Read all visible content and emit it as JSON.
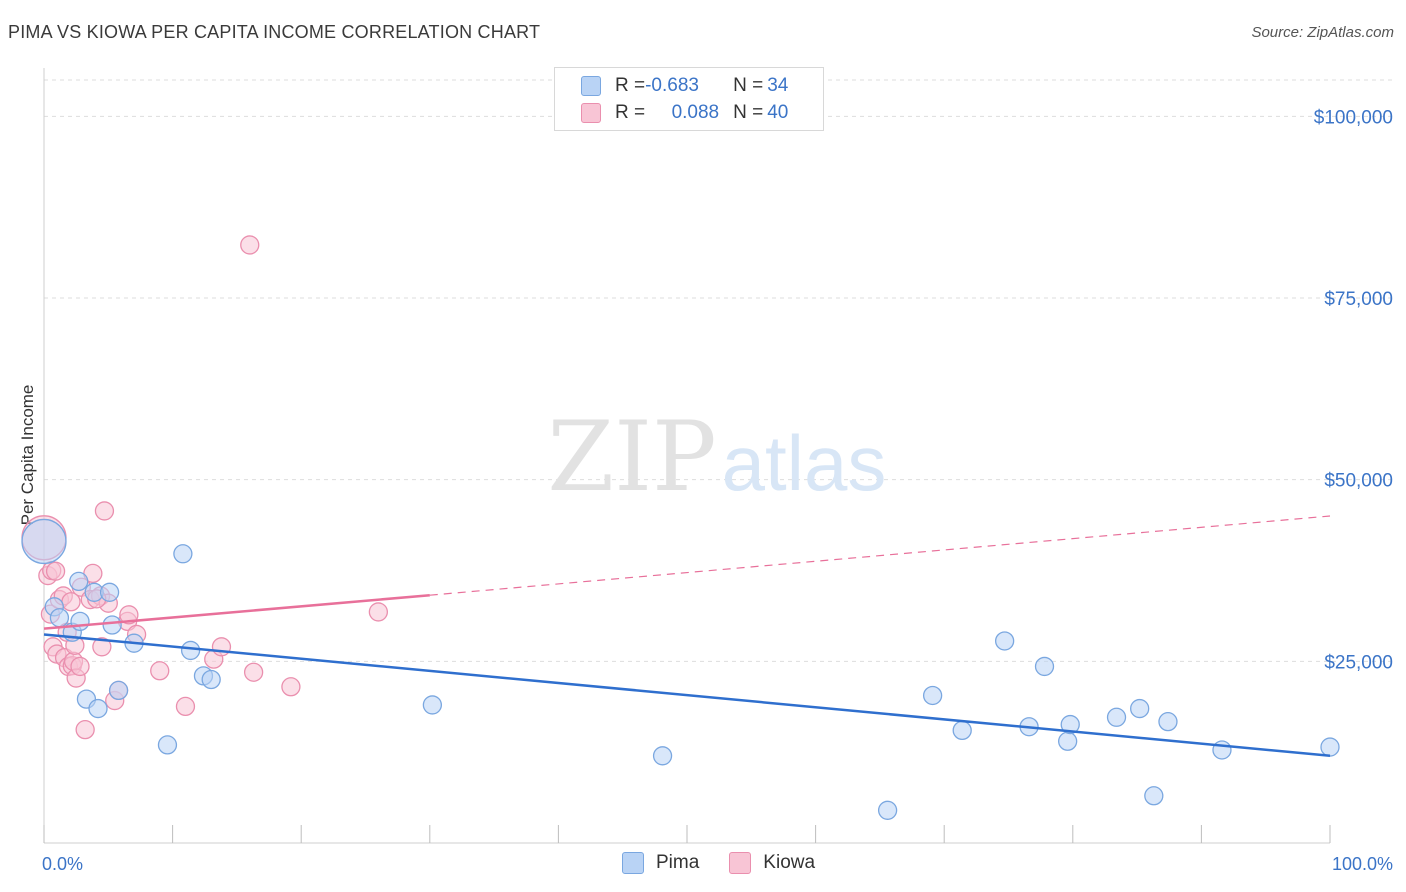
{
  "title": "PIMA VS KIOWA PER CAPITA INCOME CORRELATION CHART",
  "source": "Source: ZipAtlas.com",
  "watermark": {
    "zip": "ZIP",
    "atlas": "atlas"
  },
  "colors": {
    "pima_fill": "#b9d3f5",
    "pima_stroke": "#7aa7e0",
    "pima_line": "#2f6fce",
    "kiowa_fill": "#f8c5d5",
    "kiowa_stroke": "#ea8fae",
    "kiowa_line": "#e8709a",
    "tick_text": "#3b74c7",
    "grid": "#dddddd"
  },
  "stats": {
    "pima": {
      "r_label": "R = ",
      "r_value": "-0.683",
      "n_label": "N = ",
      "n_value": "34"
    },
    "kiowa": {
      "r_label": "R = ",
      "r_value": "0.088",
      "n_label": "N = ",
      "n_value": "40"
    }
  },
  "legend": {
    "pima": "Pima",
    "kiowa": "Kiowa"
  },
  "chart_data": {
    "type": "scatter",
    "title": "PIMA VS KIOWA PER CAPITA INCOME CORRELATION CHART",
    "xlabel": "",
    "ylabel": "Per Capita Income",
    "xlim": [
      0,
      100
    ],
    "ylim": [
      0,
      105000
    ],
    "x_tick_labels": [
      "0.0%",
      "100.0%"
    ],
    "y_ticks": [
      25000,
      50000,
      75000,
      100000
    ],
    "y_tick_labels": [
      "$25,000",
      "$50,000",
      "$75,000",
      "$100,000"
    ],
    "grid": true,
    "legend_position": "bottom-center",
    "series": [
      {
        "name": "Pima",
        "r": -0.683,
        "n": 34,
        "trend": {
          "x": [
            0,
            100
          ],
          "y": [
            28700,
            12000
          ],
          "style": "solid"
        },
        "points": [
          {
            "x": 0,
            "y": 41500,
            "size": "large"
          },
          {
            "x": 0.8,
            "y": 32500
          },
          {
            "x": 1.2,
            "y": 31000
          },
          {
            "x": 2.2,
            "y": 29000
          },
          {
            "x": 2.7,
            "y": 36000
          },
          {
            "x": 2.8,
            "y": 30500
          },
          {
            "x": 3.3,
            "y": 19800
          },
          {
            "x": 3.9,
            "y": 34500
          },
          {
            "x": 4.2,
            "y": 18500
          },
          {
            "x": 5.1,
            "y": 34500
          },
          {
            "x": 5.3,
            "y": 30000
          },
          {
            "x": 5.8,
            "y": 21000
          },
          {
            "x": 7.0,
            "y": 27500
          },
          {
            "x": 9.6,
            "y": 13500
          },
          {
            "x": 10.8,
            "y": 39800
          },
          {
            "x": 11.4,
            "y": 26500
          },
          {
            "x": 12.4,
            "y": 23000
          },
          {
            "x": 13.0,
            "y": 22500
          },
          {
            "x": 30.2,
            "y": 19000
          },
          {
            "x": 48.1,
            "y": 12000
          },
          {
            "x": 65.6,
            "y": 4500
          },
          {
            "x": 69.1,
            "y": 20300
          },
          {
            "x": 71.4,
            "y": 15500
          },
          {
            "x": 74.7,
            "y": 27800
          },
          {
            "x": 76.6,
            "y": 16000
          },
          {
            "x": 77.8,
            "y": 24300
          },
          {
            "x": 79.6,
            "y": 14000
          },
          {
            "x": 79.8,
            "y": 16300
          },
          {
            "x": 83.4,
            "y": 17300
          },
          {
            "x": 85.2,
            "y": 18500
          },
          {
            "x": 86.3,
            "y": 6500
          },
          {
            "x": 87.4,
            "y": 16700
          },
          {
            "x": 91.6,
            "y": 12800
          },
          {
            "x": 100,
            "y": 13200
          }
        ]
      },
      {
        "name": "Kiowa",
        "r": 0.088,
        "n": 40,
        "trend": {
          "x": [
            0,
            30,
            100
          ],
          "y": [
            29500,
            34100,
            45000
          ],
          "style": "solid-then-dashed"
        },
        "points": [
          {
            "x": 0,
            "y": 42000,
            "size": "large"
          },
          {
            "x": 0.3,
            "y": 36800
          },
          {
            "x": 0.5,
            "y": 31500
          },
          {
            "x": 0.6,
            "y": 37500
          },
          {
            "x": 0.7,
            "y": 27000
          },
          {
            "x": 1.0,
            "y": 26000
          },
          {
            "x": 1.2,
            "y": 33500
          },
          {
            "x": 1.5,
            "y": 34000
          },
          {
            "x": 1.6,
            "y": 25500
          },
          {
            "x": 1.8,
            "y": 29000
          },
          {
            "x": 1.9,
            "y": 24300
          },
          {
            "x": 2.1,
            "y": 33200
          },
          {
            "x": 2.2,
            "y": 24400
          },
          {
            "x": 2.3,
            "y": 25000
          },
          {
            "x": 2.4,
            "y": 27200
          },
          {
            "x": 2.5,
            "y": 22700
          },
          {
            "x": 2.8,
            "y": 24300
          },
          {
            "x": 2.9,
            "y": 35200
          },
          {
            "x": 3.2,
            "y": 15600
          },
          {
            "x": 3.6,
            "y": 33500
          },
          {
            "x": 3.8,
            "y": 37100
          },
          {
            "x": 4.4,
            "y": 34000
          },
          {
            "x": 4.5,
            "y": 27000
          },
          {
            "x": 4.7,
            "y": 45700
          },
          {
            "x": 5.0,
            "y": 33000
          },
          {
            "x": 5.5,
            "y": 19600
          },
          {
            "x": 5.8,
            "y": 21000
          },
          {
            "x": 6.5,
            "y": 30500
          },
          {
            "x": 6.6,
            "y": 31400
          },
          {
            "x": 7.2,
            "y": 28700
          },
          {
            "x": 9.0,
            "y": 23700
          },
          {
            "x": 11.0,
            "y": 18800
          },
          {
            "x": 13.2,
            "y": 25300
          },
          {
            "x": 13.8,
            "y": 27000
          },
          {
            "x": 16.0,
            "y": 82300
          },
          {
            "x": 16.3,
            "y": 23500
          },
          {
            "x": 19.2,
            "y": 21500
          },
          {
            "x": 26.0,
            "y": 31800
          },
          {
            "x": 0.9,
            "y": 37400
          },
          {
            "x": 4.1,
            "y": 33600
          }
        ]
      }
    ]
  }
}
